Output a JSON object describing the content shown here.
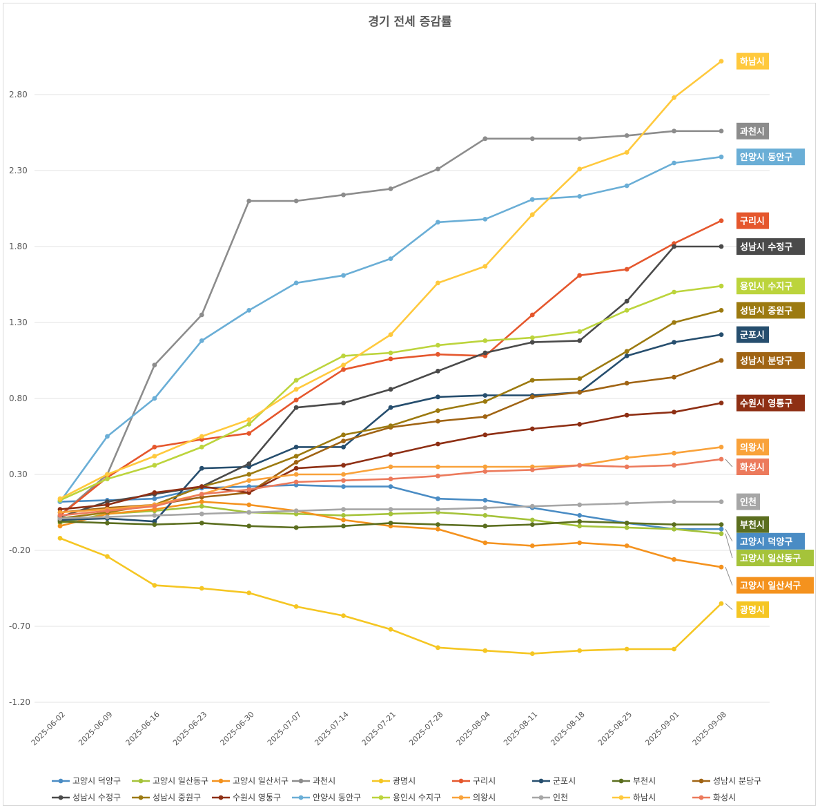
{
  "chart_data": {
    "type": "line",
    "title": "경기 전세 증감률",
    "xlabel": "",
    "ylabel": "",
    "ylim": [
      -1.2,
      3.1
    ],
    "yticks": [
      "2.80",
      "2.30",
      "1.80",
      "1.30",
      "0.80",
      "0.30",
      "-0.20",
      "-0.70",
      "-1.20"
    ],
    "ytick_values": [
      2.8,
      2.3,
      1.8,
      1.3,
      0.8,
      0.3,
      -0.2,
      -0.7,
      -1.2
    ],
    "grid": true,
    "legend_position": "bottom",
    "x": [
      "2025-06-02",
      "2025-06-09",
      "2025-06-16",
      "2025-06-23",
      "2025-06-30",
      "2025-07-07",
      "2025-07-14",
      "2025-07-21",
      "2025-07-28",
      "2025-08-04",
      "2025-08-11",
      "2025-08-18",
      "2025-08-25",
      "2025-09-01",
      "2025-09-08"
    ],
    "series": [
      {
        "name": "고양시 덕양구",
        "color": "#4a8cc4",
        "values": [
          0.12,
          0.13,
          0.14,
          0.21,
          0.22,
          0.23,
          0.22,
          0.22,
          0.14,
          0.13,
          0.08,
          0.03,
          -0.02,
          -0.06,
          -0.06
        ]
      },
      {
        "name": "고양시 일산동구",
        "color": "#a5c33a",
        "values": [
          -0.02,
          0.04,
          0.06,
          0.09,
          0.05,
          0.04,
          0.03,
          0.04,
          0.05,
          0.03,
          0.0,
          -0.04,
          -0.05,
          -0.06,
          -0.09
        ]
      },
      {
        "name": "고양시 일산서구",
        "color": "#f4921e",
        "values": [
          -0.04,
          0.04,
          0.07,
          0.12,
          0.1,
          0.06,
          0.0,
          -0.04,
          -0.06,
          -0.15,
          -0.17,
          -0.15,
          -0.17,
          -0.26,
          -0.31
        ]
      },
      {
        "name": "과천시",
        "color": "#8c8c8c",
        "values": [
          0.03,
          0.3,
          1.02,
          1.35,
          2.1,
          2.1,
          2.14,
          2.18,
          2.31,
          2.51,
          2.51,
          2.51,
          2.53,
          2.56,
          2.56
        ]
      },
      {
        "name": "광명시",
        "color": "#f5c623",
        "values": [
          -0.12,
          -0.24,
          -0.43,
          -0.45,
          -0.48,
          -0.57,
          -0.63,
          -0.72,
          -0.84,
          -0.86,
          -0.88,
          -0.86,
          -0.85,
          -0.85,
          -0.55
        ]
      },
      {
        "name": "구리시",
        "color": "#e5572d",
        "values": [
          0.03,
          0.28,
          0.48,
          0.53,
          0.57,
          0.79,
          0.99,
          1.06,
          1.09,
          1.08,
          1.35,
          1.61,
          1.65,
          1.82,
          1.97
        ]
      },
      {
        "name": "군포시",
        "color": "#264e6e",
        "values": [
          0.0,
          0.01,
          -0.01,
          0.34,
          0.35,
          0.48,
          0.48,
          0.74,
          0.81,
          0.82,
          0.82,
          0.84,
          1.08,
          1.17,
          1.22
        ]
      },
      {
        "name": "부천시",
        "color": "#5b6e1f",
        "values": [
          -0.01,
          -0.02,
          -0.03,
          -0.02,
          -0.04,
          -0.05,
          -0.04,
          -0.02,
          -0.03,
          -0.04,
          -0.03,
          -0.01,
          -0.02,
          -0.03,
          -0.03
        ]
      },
      {
        "name": "성남시 분당구",
        "color": "#a06414",
        "values": [
          0.05,
          0.08,
          0.1,
          0.15,
          0.18,
          0.38,
          0.52,
          0.61,
          0.65,
          0.68,
          0.81,
          0.84,
          0.9,
          0.94,
          1.05
        ]
      },
      {
        "name": "성남시 수정구",
        "color": "#4a4a4a",
        "values": [
          0.02,
          0.12,
          0.17,
          0.22,
          0.37,
          0.74,
          0.77,
          0.86,
          0.98,
          1.1,
          1.17,
          1.18,
          1.44,
          1.8,
          1.8
        ]
      },
      {
        "name": "성남시 중원구",
        "color": "#9c7a10",
        "values": [
          0.01,
          0.05,
          0.1,
          0.22,
          0.3,
          0.42,
          0.56,
          0.62,
          0.72,
          0.78,
          0.92,
          0.93,
          1.11,
          1.3,
          1.38
        ]
      },
      {
        "name": "수원시 영통구",
        "color": "#8e2f14",
        "values": [
          0.07,
          0.1,
          0.18,
          0.22,
          0.18,
          0.34,
          0.36,
          0.43,
          0.5,
          0.56,
          0.6,
          0.63,
          0.69,
          0.71,
          0.77
        ]
      },
      {
        "name": "안양시 동안구",
        "color": "#6aaed6",
        "values": [
          0.12,
          0.55,
          0.8,
          1.18,
          1.38,
          1.56,
          1.61,
          1.72,
          1.96,
          1.98,
          2.11,
          2.13,
          2.2,
          2.35,
          2.39
        ]
      },
      {
        "name": "용인시 수지구",
        "color": "#bcd43c",
        "values": [
          0.13,
          0.27,
          0.36,
          0.48,
          0.63,
          0.92,
          1.08,
          1.1,
          1.15,
          1.18,
          1.2,
          1.24,
          1.38,
          1.5,
          1.54
        ]
      },
      {
        "name": "의왕시",
        "color": "#f9a23a",
        "values": [
          0.05,
          0.07,
          0.1,
          0.17,
          0.26,
          0.3,
          0.3,
          0.35,
          0.35,
          0.35,
          0.35,
          0.36,
          0.41,
          0.44,
          0.48
        ]
      },
      {
        "name": "인천",
        "color": "#a6a6a6",
        "values": [
          0.01,
          0.02,
          0.03,
          0.04,
          0.05,
          0.06,
          0.07,
          0.07,
          0.07,
          0.08,
          0.09,
          0.1,
          0.11,
          0.12,
          0.12
        ]
      },
      {
        "name": "하남시",
        "color": "#ffc93d",
        "values": [
          0.14,
          0.3,
          0.42,
          0.55,
          0.66,
          0.86,
          1.02,
          1.22,
          1.56,
          1.67,
          2.01,
          2.31,
          2.42,
          2.78,
          3.02
        ]
      },
      {
        "name": "화성시",
        "color": "#ec7a5c",
        "values": [
          0.03,
          0.06,
          0.09,
          0.17,
          0.2,
          0.25,
          0.26,
          0.27,
          0.29,
          0.32,
          0.33,
          0.36,
          0.35,
          0.36,
          0.4
        ]
      }
    ],
    "end_labels": [
      {
        "series": "하남시",
        "label": "하남시",
        "y": 3.02
      },
      {
        "series": "과천시",
        "label": "과천시",
        "y": 2.56
      },
      {
        "series": "안양시 동안구",
        "label": "안양시 동안구",
        "y": 2.39
      },
      {
        "series": "구리시",
        "label": "구리시",
        "y": 1.97
      },
      {
        "series": "성남시 수정구",
        "label": "성남시 수정구",
        "y": 1.8
      },
      {
        "series": "용인시 수지구",
        "label": "용인시 수지구",
        "y": 1.54
      },
      {
        "series": "성남시 중원구",
        "label": "성남시 중원구",
        "y": 1.38
      },
      {
        "series": "군포시",
        "label": "군포시",
        "y": 1.22
      },
      {
        "series": "성남시 분당구",
        "label": "성남시 분당구",
        "y": 1.05
      },
      {
        "series": "수원시 영통구",
        "label": "수원시 영통구",
        "y": 0.77
      },
      {
        "series": "의왕시",
        "label": "의왕시",
        "y": 0.48
      },
      {
        "series": "화성시",
        "label": "화성시",
        "y": 0.35
      },
      {
        "series": "인천",
        "label": "인천",
        "y": 0.12
      },
      {
        "series": "부천시",
        "label": "부천시",
        "y": -0.03
      },
      {
        "series": "고양시 덕양구",
        "label": "고양시 덕양구",
        "y": -0.14
      },
      {
        "series": "고양시 일산동구",
        "label": "고양시 일산동구",
        "y": -0.25
      },
      {
        "series": "고양시 일산서구",
        "label": "고양시 일산서구",
        "y": -0.43
      },
      {
        "series": "광명시",
        "label": "광명시",
        "y": -0.59
      }
    ]
  }
}
